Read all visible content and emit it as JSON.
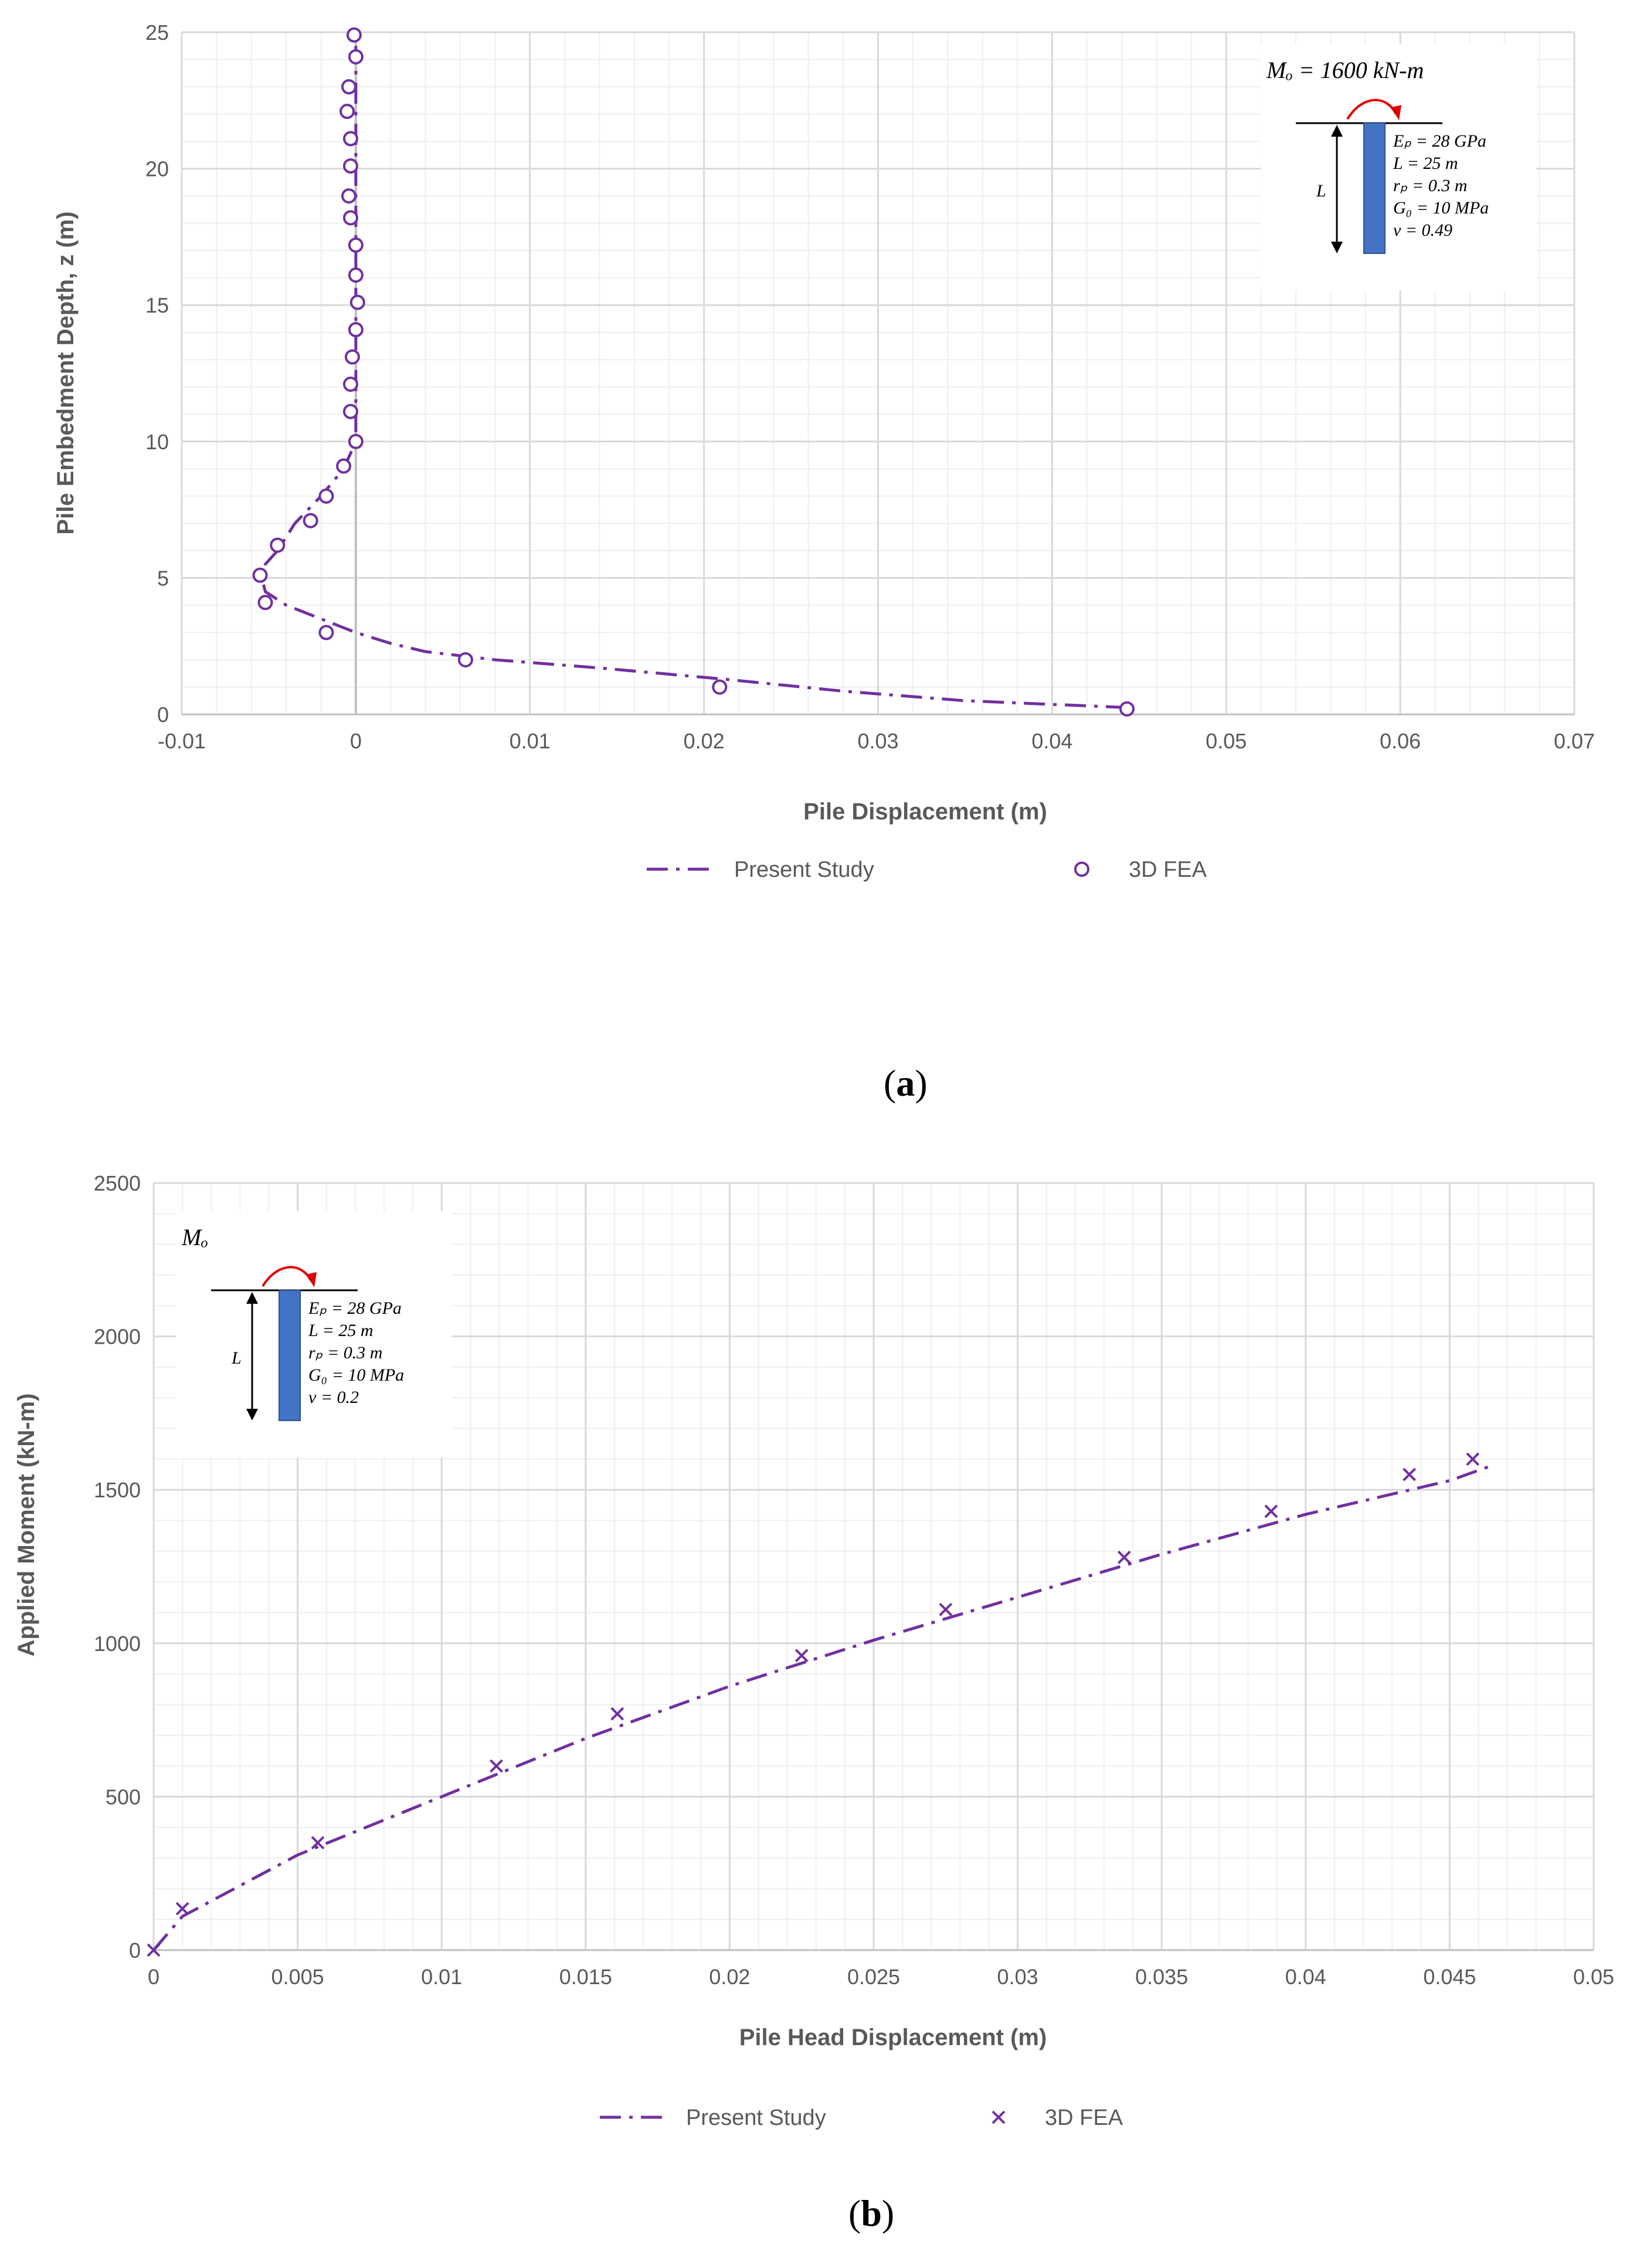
{
  "chart_data": [
    {
      "id": "a",
      "type": "line",
      "panel_label": "a",
      "xlabel": "Pile Displacement (m)",
      "ylabel": "Pile Embedment Depth, z (m)",
      "xlim": [
        -0.01,
        0.07
      ],
      "ylim": [
        0,
        25
      ],
      "x_ticks": [
        -0.01,
        0,
        0.01,
        0.02,
        0.03,
        0.04,
        0.05,
        0.06,
        0.07
      ],
      "x_tick_labels": [
        "-0.01",
        "0",
        "0.01",
        "0.02",
        "0.03",
        "0.04",
        "0.05",
        "0.06",
        "0.07"
      ],
      "y_ticks": [
        0,
        5,
        10,
        15,
        20,
        25
      ],
      "y_tick_labels": [
        "0",
        "5",
        "10",
        "15",
        "20",
        "25"
      ],
      "series": [
        {
          "name": "Present Study",
          "style": "dash-dot",
          "x": [
            0.0443,
            0.035,
            0.028,
            0.021,
            0.014,
            0.008,
            0.004,
            0.002,
            0.0,
            -0.002,
            -0.004,
            -0.0052,
            -0.0054,
            -0.0052,
            -0.0045,
            -0.0035,
            -0.002,
            -0.0007,
            0.0,
            0.0,
            0.0,
            0.0,
            0.0,
            0.0,
            0.0,
            0.0
          ],
          "y": [
            0.25,
            0.5,
            0.85,
            1.3,
            1.7,
            2.0,
            2.3,
            2.6,
            3.0,
            3.5,
            4.0,
            4.5,
            5.0,
            5.5,
            6.0,
            7.0,
            8.0,
            9.0,
            10.0,
            12.0,
            14.0,
            16.0,
            18.0,
            20.0,
            22.0,
            24.5
          ]
        },
        {
          "name": "3D FEA",
          "style": "circle",
          "x": [
            0.0443,
            0.0209,
            0.0063,
            -0.0017,
            -0.0052,
            -0.0055,
            -0.0045,
            -0.0026,
            -0.0017,
            -0.0007,
            0.0,
            -0.0003,
            -0.0003,
            -0.0002,
            0.0,
            0.0001,
            0.0,
            0.0,
            -0.0003,
            -0.0004,
            -0.0003,
            -0.0003,
            -0.0005,
            -0.0004,
            0.0,
            -0.0001
          ],
          "y": [
            0.2,
            1.0,
            2.0,
            3.0,
            4.1,
            5.1,
            6.2,
            7.1,
            8.0,
            9.1,
            10.0,
            11.1,
            12.1,
            13.1,
            14.1,
            15.1,
            16.1,
            17.2,
            18.2,
            19.0,
            20.1,
            21.1,
            22.1,
            23.0,
            24.1,
            24.9
          ]
        }
      ],
      "legend": [
        "Present Study",
        "3D FEA"
      ],
      "inset": {
        "moment": "Mₒ = 1600 kN-m",
        "length": "L",
        "props": [
          "Eₚ = 28 GPa",
          "L = 25 m",
          "rₚ = 0.3 m",
          "G₀ = 10 MPa",
          "ν = 0.49"
        ]
      }
    },
    {
      "id": "b",
      "type": "line",
      "panel_label": "b",
      "xlabel": "Pile Head Displacement (m)",
      "ylabel": "Applied Moment (kN-m)",
      "xlim": [
        0,
        0.05
      ],
      "ylim": [
        0,
        2500
      ],
      "x_ticks": [
        0,
        0.005,
        0.01,
        0.015,
        0.02,
        0.025,
        0.03,
        0.035,
        0.04,
        0.045,
        0.05
      ],
      "x_tick_labels": [
        "0",
        "0.005",
        "0.01",
        "0.015",
        "0.02",
        "0.025",
        "0.03",
        "0.035",
        "0.04",
        "0.045",
        "0.05"
      ],
      "y_ticks": [
        0,
        500,
        1000,
        1500,
        2000,
        2500
      ],
      "y_tick_labels": [
        "0",
        "500",
        "1000",
        "1500",
        "2000",
        "2500"
      ],
      "series": [
        {
          "name": "Present Study",
          "style": "dash-dot",
          "x": [
            0,
            0.001,
            0.005,
            0.01,
            0.015,
            0.02,
            0.025,
            0.03,
            0.035,
            0.04,
            0.045,
            0.0465
          ],
          "y": [
            0,
            110,
            310,
            500,
            690,
            860,
            1010,
            1150,
            1290,
            1420,
            1530,
            1580
          ]
        },
        {
          "name": "3D FEA",
          "style": "cross",
          "x": [
            0,
            0.001,
            0.0057,
            0.0119,
            0.0161,
            0.0225,
            0.0275,
            0.0337,
            0.0388,
            0.0436,
            0.0458
          ],
          "y": [
            0,
            135,
            350,
            600,
            770,
            960,
            1110,
            1280,
            1430,
            1550,
            1600
          ]
        }
      ],
      "legend": [
        "Present Study",
        "3D FEA"
      ],
      "inset": {
        "moment": "Mₒ",
        "length": "L",
        "props": [
          "Eₚ = 28 GPa",
          "L = 25 m",
          "rₚ = 0.3 m",
          "G₀ = 10 MPa",
          "ν = 0.2"
        ]
      }
    }
  ],
  "colors": {
    "series": "#7030a0",
    "pile": "#4472c4",
    "arrow": "#e00000",
    "grid_major": "#d9d9d9",
    "grid_minor": "#efefef",
    "axis": "#bfbfbf"
  }
}
